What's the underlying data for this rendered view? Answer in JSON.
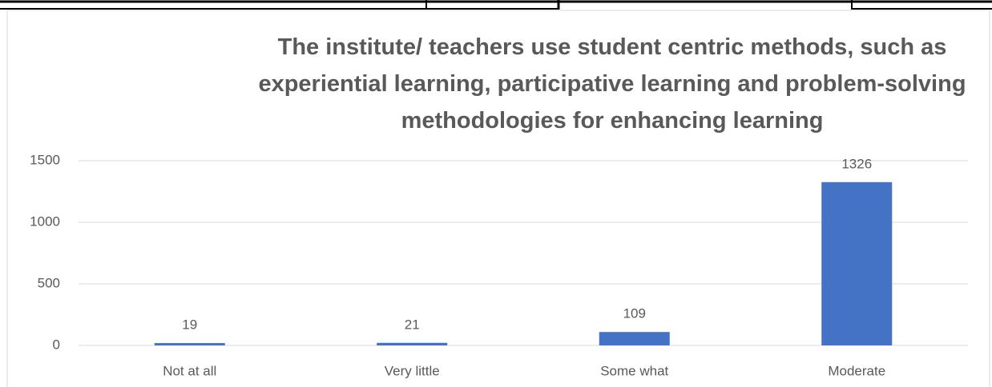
{
  "chart_data": {
    "type": "bar",
    "title": "The institute/ teachers use student centric methods, such as experiential learning, participative learning and problem-solving methodologies for enhancing learning",
    "categories": [
      "Not at all",
      "Very little",
      "Some what",
      "Moderate"
    ],
    "values": [
      19,
      21,
      109,
      1326
    ],
    "color": "#4472c4",
    "ylim": [
      0,
      1500
    ],
    "yticks": [
      0,
      500,
      1000,
      1500
    ],
    "grid": true
  }
}
